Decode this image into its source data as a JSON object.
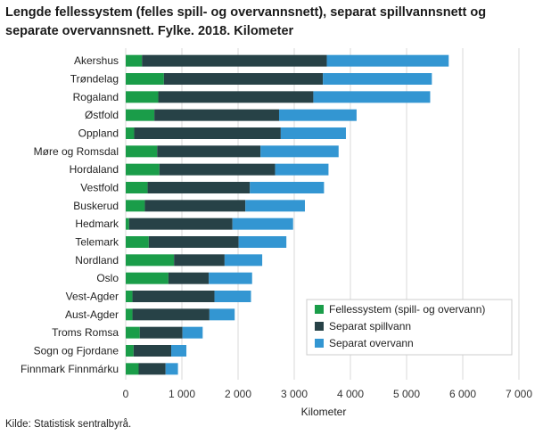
{
  "title": "Lengde fellessystem (felles spill- og overvannsnett), separat spillvannsnett og separate overvannsnett. Fylke. 2018. Kilometer",
  "source": "Kilde: Statistisk sentralbyrå.",
  "chart_data": {
    "type": "bar",
    "orientation": "horizontal",
    "stacked": true,
    "categories": [
      "Akershus",
      "Trøndelag",
      "Rogaland",
      "Østfold",
      "Oppland",
      "Møre og Romsdal",
      "Hordaland",
      "Vestfold",
      "Buskerud",
      "Hedmark",
      "Telemark",
      "Nordland",
      "Oslo",
      "Vest-Agder",
      "Aust-Agder",
      "Troms Romsa",
      "Sogn og Fjordane",
      "Finnmark Finnmárku"
    ],
    "series": [
      {
        "name": "Fellessystem (spill- og overvann)",
        "color": "#1a9d49",
        "values": [
          290,
          680,
          580,
          510,
          150,
          560,
          600,
          390,
          340,
          60,
          410,
          860,
          760,
          120,
          120,
          250,
          140,
          230
        ]
      },
      {
        "name": "Separat spillvann",
        "color": "#274247",
        "values": [
          3290,
          2830,
          2760,
          2220,
          2610,
          1840,
          2060,
          1820,
          1790,
          1840,
          1600,
          900,
          720,
          1460,
          1370,
          760,
          670,
          480
        ]
      },
      {
        "name": "Separat overvann",
        "color": "#3396d2",
        "values": [
          2170,
          1940,
          2080,
          1380,
          1160,
          1390,
          950,
          1320,
          1060,
          1080,
          850,
          670,
          770,
          650,
          450,
          360,
          270,
          220
        ]
      }
    ],
    "xlabel": "Kilometer",
    "ylabel": "",
    "xlim": [
      0,
      7000
    ],
    "xticks": [
      0,
      1000,
      2000,
      3000,
      4000,
      5000,
      6000,
      7000
    ],
    "xtick_labels": [
      "0",
      "1 000",
      "2 000",
      "3 000",
      "4 000",
      "5 000",
      "6 000",
      "7 000"
    ],
    "grid": true,
    "legend_position": "bottom-right"
  }
}
